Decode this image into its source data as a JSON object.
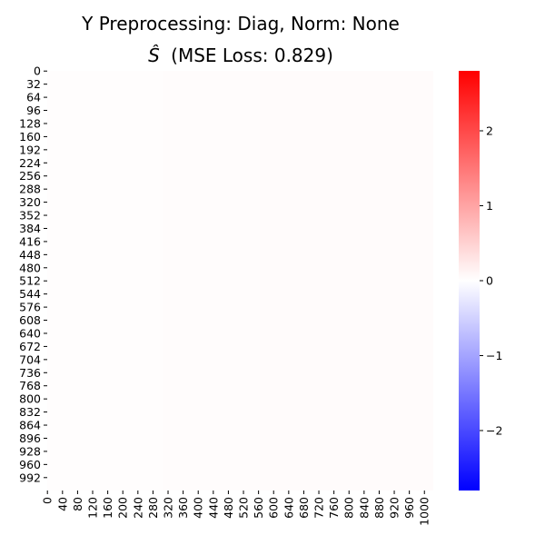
{
  "chart_data": {
    "type": "heatmap",
    "title_line1": "Y Preprocessing: Diag, Norm: None",
    "title_line2_symbol": "Ŝ",
    "title_line2_text": "(MSE Loss: 0.829)",
    "n_rows": 1024,
    "n_cols": 1024,
    "y_tick_labels": [
      "0",
      "32",
      "64",
      "96",
      "128",
      "160",
      "192",
      "224",
      "256",
      "288",
      "320",
      "352",
      "384",
      "416",
      "448",
      "480",
      "512",
      "544",
      "576",
      "608",
      "640",
      "672",
      "704",
      "736",
      "768",
      "800",
      "832",
      "864",
      "896",
      "928",
      "960",
      "992"
    ],
    "x_tick_labels": [
      "0",
      "40",
      "80",
      "120",
      "160",
      "200",
      "240",
      "280",
      "320",
      "360",
      "400",
      "440",
      "480",
      "520",
      "560",
      "600",
      "640",
      "680",
      "720",
      "760",
      "800",
      "840",
      "880",
      "920",
      "960",
      "1000"
    ],
    "colorbar": {
      "cmap": "bwr",
      "vmin": -2.8,
      "vmax": 2.8,
      "tick_values": [
        -2,
        -1,
        0,
        1,
        2
      ],
      "tick_labels": [
        "−2",
        "−1",
        "0",
        "1",
        "2"
      ]
    },
    "approx_cell_value": 0.03
  }
}
